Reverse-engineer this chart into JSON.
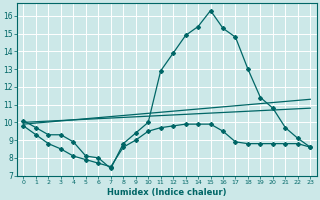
{
  "title": "",
  "xlabel": "Humidex (Indice chaleur)",
  "ylabel": "",
  "xlim": [
    -0.5,
    23.5
  ],
  "ylim": [
    7,
    16.7
  ],
  "yticks": [
    7,
    8,
    9,
    10,
    11,
    12,
    13,
    14,
    15,
    16
  ],
  "xticks": [
    0,
    1,
    2,
    3,
    4,
    5,
    6,
    7,
    8,
    9,
    10,
    11,
    12,
    13,
    14,
    15,
    16,
    17,
    18,
    19,
    20,
    21,
    22,
    23
  ],
  "background_color": "#cce8e8",
  "grid_color": "#aacccc",
  "line_color": "#006666",
  "line1_x": [
    0,
    1,
    2,
    3,
    4,
    5,
    6,
    7,
    8,
    9,
    10,
    11,
    12,
    13,
    14,
    15,
    16,
    17,
    18,
    19,
    20,
    21,
    22,
    23
  ],
  "line1_y": [
    10.1,
    9.7,
    9.3,
    9.3,
    8.9,
    8.1,
    8.0,
    7.4,
    8.8,
    9.4,
    10.0,
    12.9,
    13.9,
    14.9,
    15.4,
    16.3,
    15.3,
    14.8,
    13.0,
    11.4,
    10.8,
    9.7,
    9.1,
    8.6
  ],
  "line2_x": [
    0,
    1,
    2,
    3,
    4,
    5,
    6,
    7,
    8,
    9,
    10,
    11,
    12,
    13,
    14,
    15,
    16,
    17,
    18,
    19,
    20,
    21,
    22,
    23
  ],
  "line2_y": [
    9.8,
    9.3,
    8.8,
    8.5,
    8.1,
    7.9,
    7.7,
    7.5,
    8.6,
    9.0,
    9.5,
    9.7,
    9.8,
    9.9,
    9.9,
    9.9,
    9.5,
    8.9,
    8.8,
    8.8,
    8.8,
    8.8,
    8.8,
    8.6
  ],
  "trend1_x": [
    0,
    23
  ],
  "trend1_y": [
    9.9,
    11.3
  ],
  "trend2_x": [
    0,
    23
  ],
  "trend2_y": [
    10.0,
    10.8
  ]
}
